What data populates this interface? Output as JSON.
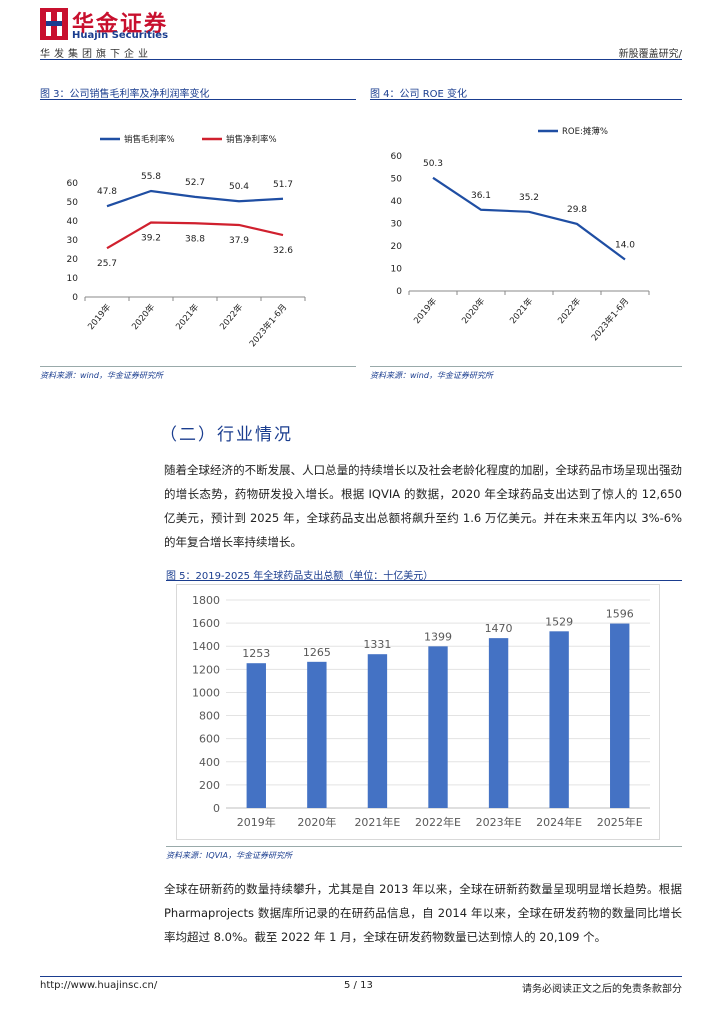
{
  "header": {
    "brand_cn": "华金证券",
    "brand_en": "Huajin Securities",
    "group": "华发集团旗下企业",
    "report_type": "新股覆盖研究/"
  },
  "fig3": {
    "title": "图 3：公司销售毛利率及净利润率变化",
    "source": "资料来源：wind，华金证券研究所"
  },
  "fig4": {
    "title": "图 4：公司 ROE 变化",
    "source": "资料来源：wind，华金证券研究所"
  },
  "section": {
    "title": "（二）行业情况"
  },
  "paragraph1": "随着全球经济的不断发展、人口总量的持续增长以及社会老龄化程度的加剧，全球药品市场呈现出强劲的增长态势，药物研发投入增长。根据 IQVIA 的数据，2020 年全球药品支出达到了惊人的 12,650 亿美元，预计到 2025 年，全球药品支出总额将飙升至约 1.6 万亿美元。并在未来五年内以 3%-6%的年复合增长率持续增长。",
  "fig5": {
    "title": "图 5：2019-2025 年全球药品支出总额（单位：十亿美元）",
    "source": "资料来源：IQVIA，华金证券研究所"
  },
  "paragraph2": "全球在研新药的数量持续攀升，尤其是自 2013 年以来，全球在研新药数量呈现明显增长趋势。根据 Pharmaprojects 数据库所记录的在研药品信息，自 2014 年以来，全球在研发药物的数量同比增长率均超过 8.0%。截至 2022 年 1 月，全球在研发药物数量已达到惊人的 20,109 个。",
  "footer": {
    "url": "http://www.huajinsc.cn/",
    "page": "5 / 13",
    "disclaimer": "请务必阅读正文之后的免责条款部分"
  },
  "chart_data": [
    {
      "type": "line",
      "categories": [
        "2019年",
        "2020年",
        "2021年",
        "2022年",
        "2023年1-6月"
      ],
      "series": [
        {
          "name": "销售毛利率%",
          "values": [
            47.8,
            55.8,
            52.7,
            50.4,
            51.7
          ],
          "color": "#1f4ea3"
        },
        {
          "name": "销售净利率%",
          "values": [
            25.7,
            39.2,
            38.8,
            37.9,
            32.6
          ],
          "color": "#d0202e"
        }
      ],
      "ylim": [
        0,
        60
      ],
      "yticks": [
        0,
        10,
        20,
        30,
        40,
        50,
        60
      ]
    },
    {
      "type": "line",
      "categories": [
        "2019年",
        "2020年",
        "2021年",
        "2022年",
        "2023年1-6月"
      ],
      "series": [
        {
          "name": "ROE:摊薄%",
          "values": [
            50.3,
            36.1,
            35.2,
            29.8,
            14.0
          ],
          "color": "#1f4ea3"
        }
      ],
      "ylim": [
        0,
        60
      ],
      "yticks": [
        0,
        10,
        20,
        30,
        40,
        50,
        60
      ]
    },
    {
      "type": "bar",
      "categories": [
        "2019年",
        "2020年",
        "2021年E",
        "2022年E",
        "2023年E",
        "2024年E",
        "2025年E"
      ],
      "values": [
        1253,
        1265,
        1331,
        1399,
        1470,
        1529,
        1596
      ],
      "color": "#4472c4",
      "ylim": [
        0,
        1800
      ],
      "yticks": [
        0,
        200,
        400,
        600,
        800,
        1000,
        1200,
        1400,
        1600,
        1800
      ]
    }
  ]
}
